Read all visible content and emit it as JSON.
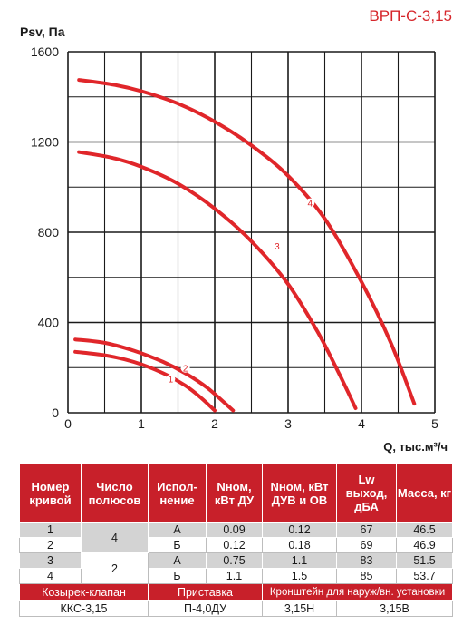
{
  "model_title": "ВРП-С-3,15",
  "chart_data": {
    "type": "line",
    "ylabel": "Psv, Па",
    "xlabel": "Q, тыс.м³/ч",
    "xlim": [
      0,
      5
    ],
    "ylim": [
      0,
      1600
    ],
    "x_ticks": [
      "0",
      "1",
      "2",
      "3",
      "4",
      "5"
    ],
    "y_ticks": [
      "0",
      "400",
      "800",
      "1200",
      "1600"
    ],
    "grid": true,
    "line_color": "#e0262a",
    "series": [
      {
        "name": "1",
        "x": [
          0.1,
          0.5,
          0.9,
          1.3,
          1.6,
          1.8,
          2.0
        ],
        "y": [
          270,
          255,
          225,
          175,
          120,
          70,
          10
        ]
      },
      {
        "name": "2",
        "x": [
          0.1,
          0.5,
          0.9,
          1.3,
          1.6,
          1.9,
          2.25
        ],
        "y": [
          325,
          310,
          275,
          225,
          175,
          110,
          10
        ]
      },
      {
        "name": "3",
        "x": [
          0.15,
          0.6,
          1.0,
          1.5,
          2.0,
          2.5,
          3.0,
          3.4,
          3.7,
          3.92
        ],
        "y": [
          1155,
          1130,
          1090,
          1015,
          905,
          760,
          570,
          360,
          170,
          20
        ]
      },
      {
        "name": "4",
        "x": [
          0.15,
          0.6,
          1.0,
          1.5,
          2.0,
          2.5,
          3.0,
          3.5,
          4.0,
          4.4,
          4.72
        ],
        "y": [
          1475,
          1455,
          1425,
          1370,
          1290,
          1185,
          1050,
          860,
          580,
          310,
          40
        ]
      }
    ],
    "curve_labels": [
      {
        "text": "1",
        "x": 1.4,
        "y": 150
      },
      {
        "text": "2",
        "x": 1.6,
        "y": 198
      },
      {
        "text": "3",
        "x": 2.85,
        "y": 740
      },
      {
        "text": "4",
        "x": 3.3,
        "y": 930
      }
    ]
  },
  "table": {
    "headers": [
      "Номер кривой",
      "Число полюсов",
      "Испол-нение",
      "Nном, кВт ДУ",
      "Nном, кВт ДУВ и ОВ",
      "Lw выход, дБА",
      "Масса, кг"
    ],
    "rows": [
      {
        "curve": "1",
        "exec": "А",
        "n_du": "0.09",
        "n_duv": "0.12",
        "lw": "67",
        "mass": "46.5"
      },
      {
        "curve": "2",
        "exec": "Б",
        "n_du": "0.12",
        "n_duv": "0.18",
        "lw": "69",
        "mass": "46.9"
      },
      {
        "curve": "3",
        "exec": "А",
        "n_du": "0.75",
        "n_duv": "1.1",
        "lw": "83",
        "mass": "51.5"
      },
      {
        "curve": "4",
        "exec": "Б",
        "n_du": "1.1",
        "n_duv": "1.5",
        "lw": "85",
        "mass": "53.7"
      }
    ],
    "poles": [
      "4",
      "2"
    ],
    "accessories_headers": [
      "Козырек-клапан",
      "Приставка",
      "Кронштейн для наруж/вн. установки"
    ],
    "accessories_values": [
      "ККС-3,15",
      "П-4,0ДУ",
      "3,15Н",
      "3,15В"
    ]
  }
}
